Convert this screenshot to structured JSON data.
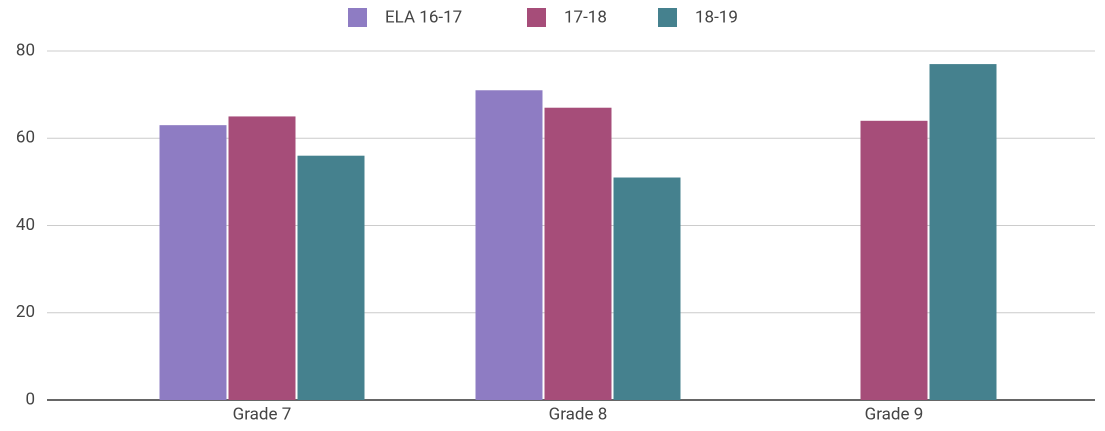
{
  "chart_data": {
    "type": "bar",
    "categories": [
      "Grade 7",
      "Grade 8",
      "Grade 9"
    ],
    "series": [
      {
        "name": "ELA 16-17",
        "color": "#8e7cc3",
        "values": [
          63,
          71,
          null
        ]
      },
      {
        "name": "17-18",
        "color": "#a64d79",
        "values": [
          65,
          67,
          64
        ]
      },
      {
        "name": "18-19",
        "color": "#45818e",
        "values": [
          56,
          51,
          77
        ]
      }
    ],
    "ylim": [
      0,
      80
    ],
    "yticks": [
      0,
      20,
      40,
      60,
      80
    ],
    "grid": true,
    "legend": "top"
  }
}
